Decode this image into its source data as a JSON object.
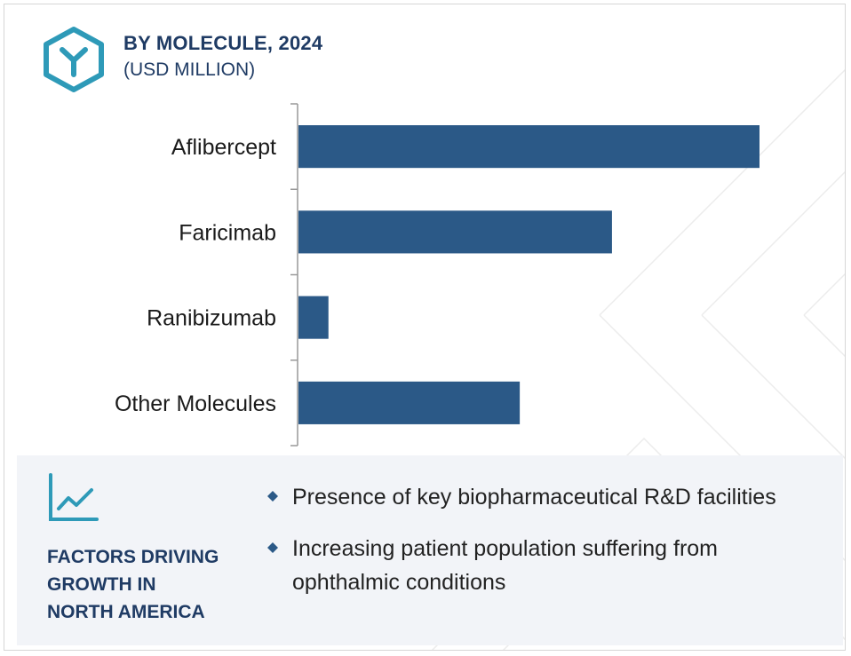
{
  "header": {
    "title": "BY MOLECULE, 2024",
    "subtitle": "(USD MILLION)",
    "icon": "hexagon-y-icon"
  },
  "colors": {
    "bar": "#2b5987",
    "title": "#1f3b64",
    "icon": "#2e9ab8",
    "axis": "#999999",
    "panel": "#f2f4f8"
  },
  "chart_data": {
    "type": "bar",
    "orientation": "horizontal",
    "title": "BY MOLECULE, 2024",
    "subtitle": "(USD MILLION)",
    "categories": [
      "Aflibercept",
      "Faricimab",
      "Ranibizumab",
      "Other Molecules"
    ],
    "values": [
      100,
      68,
      6.5,
      48
    ],
    "xlim": [
      0,
      100
    ],
    "xlabel": "",
    "ylabel": "",
    "grid": false,
    "value_axis_shown": false,
    "legend": "none"
  },
  "factors": {
    "icon": "line-chart-icon",
    "title_lines": [
      "FACTORS DRIVING",
      "GROWTH IN",
      "NORTH AMERICA"
    ],
    "items": [
      "Presence of key biopharmaceutical R&D facilities",
      "Increasing patient population suffering from ophthalmic conditions"
    ]
  }
}
